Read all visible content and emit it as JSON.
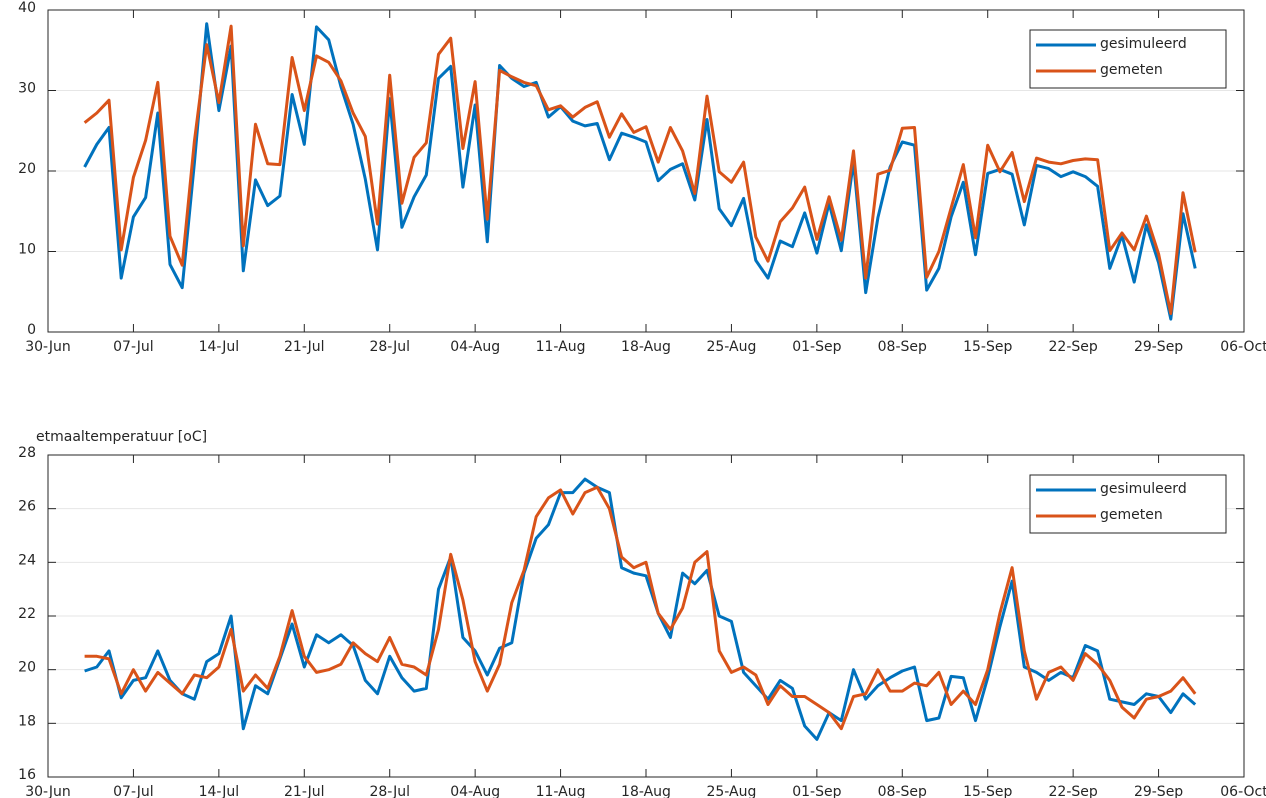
{
  "chart_data": [
    {
      "type": "line",
      "x": [
        "03-Jul",
        "04-Jul",
        "05-Jul",
        "06-Jul",
        "07-Jul",
        "08-Jul",
        "09-Jul",
        "10-Jul",
        "11-Jul",
        "12-Jul",
        "13-Jul",
        "14-Jul",
        "15-Jul",
        "16-Jul",
        "17-Jul",
        "18-Jul",
        "19-Jul",
        "20-Jul",
        "21-Jul",
        "22-Jul",
        "23-Jul",
        "24-Jul",
        "25-Jul",
        "26-Jul",
        "27-Jul",
        "28-Jul",
        "29-Jul",
        "30-Jul",
        "31-Jul",
        "01-Aug",
        "02-Aug",
        "03-Aug",
        "04-Aug",
        "05-Aug",
        "06-Aug",
        "07-Aug",
        "08-Aug",
        "09-Aug",
        "10-Aug",
        "11-Aug",
        "12-Aug",
        "13-Aug",
        "14-Aug",
        "15-Aug",
        "16-Aug",
        "17-Aug",
        "18-Aug",
        "19-Aug",
        "20-Aug",
        "21-Aug",
        "22-Aug",
        "23-Aug",
        "24-Aug",
        "25-Aug",
        "26-Aug",
        "27-Aug",
        "28-Aug",
        "29-Aug",
        "30-Aug",
        "31-Aug",
        "01-Sep",
        "02-Sep",
        "03-Sep",
        "04-Sep",
        "05-Sep",
        "06-Sep",
        "07-Sep",
        "08-Sep",
        "09-Sep",
        "10-Sep",
        "11-Sep",
        "12-Sep",
        "13-Sep",
        "14-Sep",
        "15-Sep",
        "16-Sep",
        "17-Sep",
        "18-Sep",
        "19-Sep",
        "20-Sep",
        "21-Sep",
        "22-Sep",
        "23-Sep",
        "24-Sep",
        "25-Sep",
        "26-Sep",
        "27-Sep",
        "28-Sep",
        "29-Sep",
        "30-Sep",
        "01-Oct",
        "02-Oct"
      ],
      "series": [
        {
          "name": "gesimuleerd",
          "color": "#0072bd",
          "values": [
            20.5,
            23.3,
            25.4,
            6.7,
            14.3,
            16.7,
            27.2,
            8.4,
            5.5,
            21,
            38.3,
            27.5,
            35.5,
            7.6,
            18.9,
            15.7,
            16.9,
            29.5,
            23.3,
            37.9,
            36.3,
            30.5,
            25.8,
            19,
            10.2,
            29,
            13,
            16.8,
            19.5,
            31.5,
            33,
            18,
            28.2,
            11.2,
            33.1,
            31.5,
            30.5,
            31,
            26.7,
            28,
            26.2,
            25.6,
            25.9,
            21.4,
            24.7,
            24.2,
            23.6,
            18.8,
            20.2,
            20.9,
            16.4,
            26.4,
            15.3,
            13.2,
            16.6,
            8.9,
            6.7,
            11.3,
            10.6,
            14.8,
            9.8,
            16,
            10.1,
            21.2,
            4.9,
            14.2,
            20.5,
            23.6,
            23.2,
            5.2,
            7.9,
            14.3,
            18.6,
            9.6,
            19.7,
            20.2,
            19.6,
            13.3,
            20.7,
            20.3,
            19.3,
            19.9,
            19.3,
            18.1,
            7.9,
            12,
            6.2,
            13.3,
            8.6,
            1.6,
            14.7,
            7.9
          ]
        },
        {
          "name": "gemeten",
          "color": "#d95319",
          "values": [
            26,
            27.2,
            28.8,
            10.2,
            19.2,
            23.8,
            31,
            11.9,
            8.3,
            23.7,
            35.7,
            28.5,
            38,
            10.7,
            25.8,
            20.9,
            20.8,
            34.1,
            27.5,
            34.3,
            33.5,
            31.2,
            27.2,
            24.3,
            13.4,
            31.9,
            16,
            21.7,
            23.5,
            34.5,
            36.5,
            22.8,
            31.1,
            14,
            32.5,
            31.7,
            31,
            30.6,
            27.6,
            28.1,
            26.7,
            27.9,
            28.6,
            24.2,
            27.1,
            24.8,
            25.5,
            21.1,
            25.4,
            22.5,
            17.2,
            29.3,
            19.9,
            18.6,
            21.1,
            11.8,
            8.8,
            13.7,
            15.4,
            18,
            11.5,
            16.8,
            11.4,
            22.5,
            6.7,
            19.6,
            20.1,
            25.3,
            25.4,
            6.8,
            10,
            15.4,
            20.8,
            11.7,
            23.2,
            19.9,
            22.3,
            16.2,
            21.6,
            21.1,
            20.9,
            21.3,
            21.5,
            21.4,
            10.1,
            12.3,
            10.2,
            14.4,
            9.7,
            2.3,
            17.3,
            9.9
          ]
        }
      ],
      "xlim": [
        "30-Jun",
        "06-Oct"
      ],
      "xticks": [
        "30-Jun",
        "07-Jul",
        "14-Jul",
        "21-Jul",
        "28-Jul",
        "04-Aug",
        "11-Aug",
        "18-Aug",
        "25-Aug",
        "01-Sep",
        "08-Sep",
        "15-Sep",
        "22-Sep",
        "29-Sep",
        "06-Oct"
      ],
      "ylim": [
        0,
        40
      ],
      "yticks": [
        0,
        10,
        20,
        30,
        40
      ],
      "grid": true,
      "legend": "upper right"
    },
    {
      "type": "line",
      "title": "etmaaltemperatuur [oC]",
      "x": [
        "03-Jul",
        "04-Jul",
        "05-Jul",
        "06-Jul",
        "07-Jul",
        "08-Jul",
        "09-Jul",
        "10-Jul",
        "11-Jul",
        "12-Jul",
        "13-Jul",
        "14-Jul",
        "15-Jul",
        "16-Jul",
        "17-Jul",
        "18-Jul",
        "19-Jul",
        "20-Jul",
        "21-Jul",
        "22-Jul",
        "23-Jul",
        "24-Jul",
        "25-Jul",
        "26-Jul",
        "27-Jul",
        "28-Jul",
        "29-Jul",
        "30-Jul",
        "31-Jul",
        "01-Aug",
        "02-Aug",
        "03-Aug",
        "04-Aug",
        "05-Aug",
        "06-Aug",
        "07-Aug",
        "08-Aug",
        "09-Aug",
        "10-Aug",
        "11-Aug",
        "12-Aug",
        "13-Aug",
        "14-Aug",
        "15-Aug",
        "16-Aug",
        "17-Aug",
        "18-Aug",
        "19-Aug",
        "20-Aug",
        "21-Aug",
        "22-Aug",
        "23-Aug",
        "24-Aug",
        "25-Aug",
        "26-Aug",
        "27-Aug",
        "28-Aug",
        "29-Aug",
        "30-Aug",
        "31-Aug",
        "01-Sep",
        "02-Sep",
        "03-Sep",
        "04-Sep",
        "05-Sep",
        "06-Sep",
        "07-Sep",
        "08-Sep",
        "09-Sep",
        "10-Sep",
        "11-Sep",
        "12-Sep",
        "13-Sep",
        "14-Sep",
        "15-Sep",
        "16-Sep",
        "17-Sep",
        "18-Sep",
        "19-Sep",
        "20-Sep",
        "21-Sep",
        "22-Sep",
        "23-Sep",
        "24-Sep",
        "25-Sep",
        "26-Sep",
        "27-Sep",
        "28-Sep",
        "29-Sep",
        "30-Sep",
        "01-Oct",
        "02-Oct"
      ],
      "series": [
        {
          "name": "gesimuleerd",
          "color": "#0072bd",
          "values": [
            19.95,
            20.1,
            20.7,
            18.95,
            19.6,
            19.7,
            20.7,
            19.6,
            19.1,
            18.9,
            20.3,
            20.6,
            22,
            17.8,
            19.4,
            19.1,
            20.4,
            21.7,
            20.1,
            21.3,
            21,
            21.3,
            20.9,
            19.6,
            19.1,
            20.5,
            19.7,
            19.2,
            19.3,
            23,
            24.2,
            21.2,
            20.7,
            19.8,
            20.8,
            21,
            23.6,
            24.9,
            25.4,
            26.6,
            26.6,
            27.1,
            26.8,
            26.6,
            23.8,
            23.6,
            23.5,
            22.1,
            21.2,
            23.6,
            23.2,
            23.7,
            22,
            21.8,
            19.9,
            19.4,
            18.9,
            19.6,
            19.3,
            17.9,
            17.4,
            18.4,
            18.1,
            20,
            18.9,
            19.4,
            19.7,
            19.95,
            20.1,
            18.1,
            18.2,
            19.75,
            19.7,
            18.1,
            19.7,
            21.6,
            23.3,
            20.1,
            19.9,
            19.6,
            19.9,
            19.7,
            20.9,
            20.7,
            18.9,
            18.8,
            18.7,
            19.1,
            19,
            18.4,
            19.1,
            18.7
          ]
        },
        {
          "name": "gemeten",
          "color": "#d95319",
          "values": [
            20.5,
            20.5,
            20.4,
            19.1,
            20,
            19.2,
            19.9,
            19.5,
            19.1,
            19.8,
            19.7,
            20.1,
            21.5,
            19.2,
            19.8,
            19.3,
            20.5,
            22.2,
            20.5,
            19.9,
            20,
            20.2,
            21,
            20.6,
            20.3,
            21.2,
            20.2,
            20.1,
            19.8,
            21.5,
            24.3,
            22.6,
            20.3,
            19.2,
            20.2,
            22.5,
            23.7,
            25.7,
            26.4,
            26.7,
            25.8,
            26.6,
            26.8,
            26,
            24.2,
            23.8,
            24,
            22.1,
            21.5,
            22.3,
            24,
            24.4,
            20.7,
            19.9,
            20.1,
            19.8,
            18.7,
            19.4,
            19,
            19,
            18.7,
            18.4,
            17.8,
            19,
            19.1,
            20,
            19.2,
            19.2,
            19.5,
            19.4,
            19.9,
            18.7,
            19.2,
            18.7,
            20,
            22.1,
            23.8,
            20.7,
            18.9,
            19.9,
            20.1,
            19.6,
            20.6,
            20.2,
            19.6,
            18.6,
            18.2,
            18.9,
            19,
            19.2,
            19.7,
            19.1
          ]
        }
      ],
      "xlim": [
        "30-Jun",
        "06-Oct"
      ],
      "xticks": [
        "30-Jun",
        "07-Jul",
        "14-Jul",
        "21-Jul",
        "28-Jul",
        "04-Aug",
        "11-Aug",
        "18-Aug",
        "25-Aug",
        "01-Sep",
        "08-Sep",
        "15-Sep",
        "22-Sep",
        "29-Sep",
        "06-Oct"
      ],
      "ylim": [
        16,
        28
      ],
      "yticks": [
        16,
        18,
        20,
        22,
        24,
        26,
        28
      ],
      "grid": true,
      "legend": "upper right"
    }
  ]
}
